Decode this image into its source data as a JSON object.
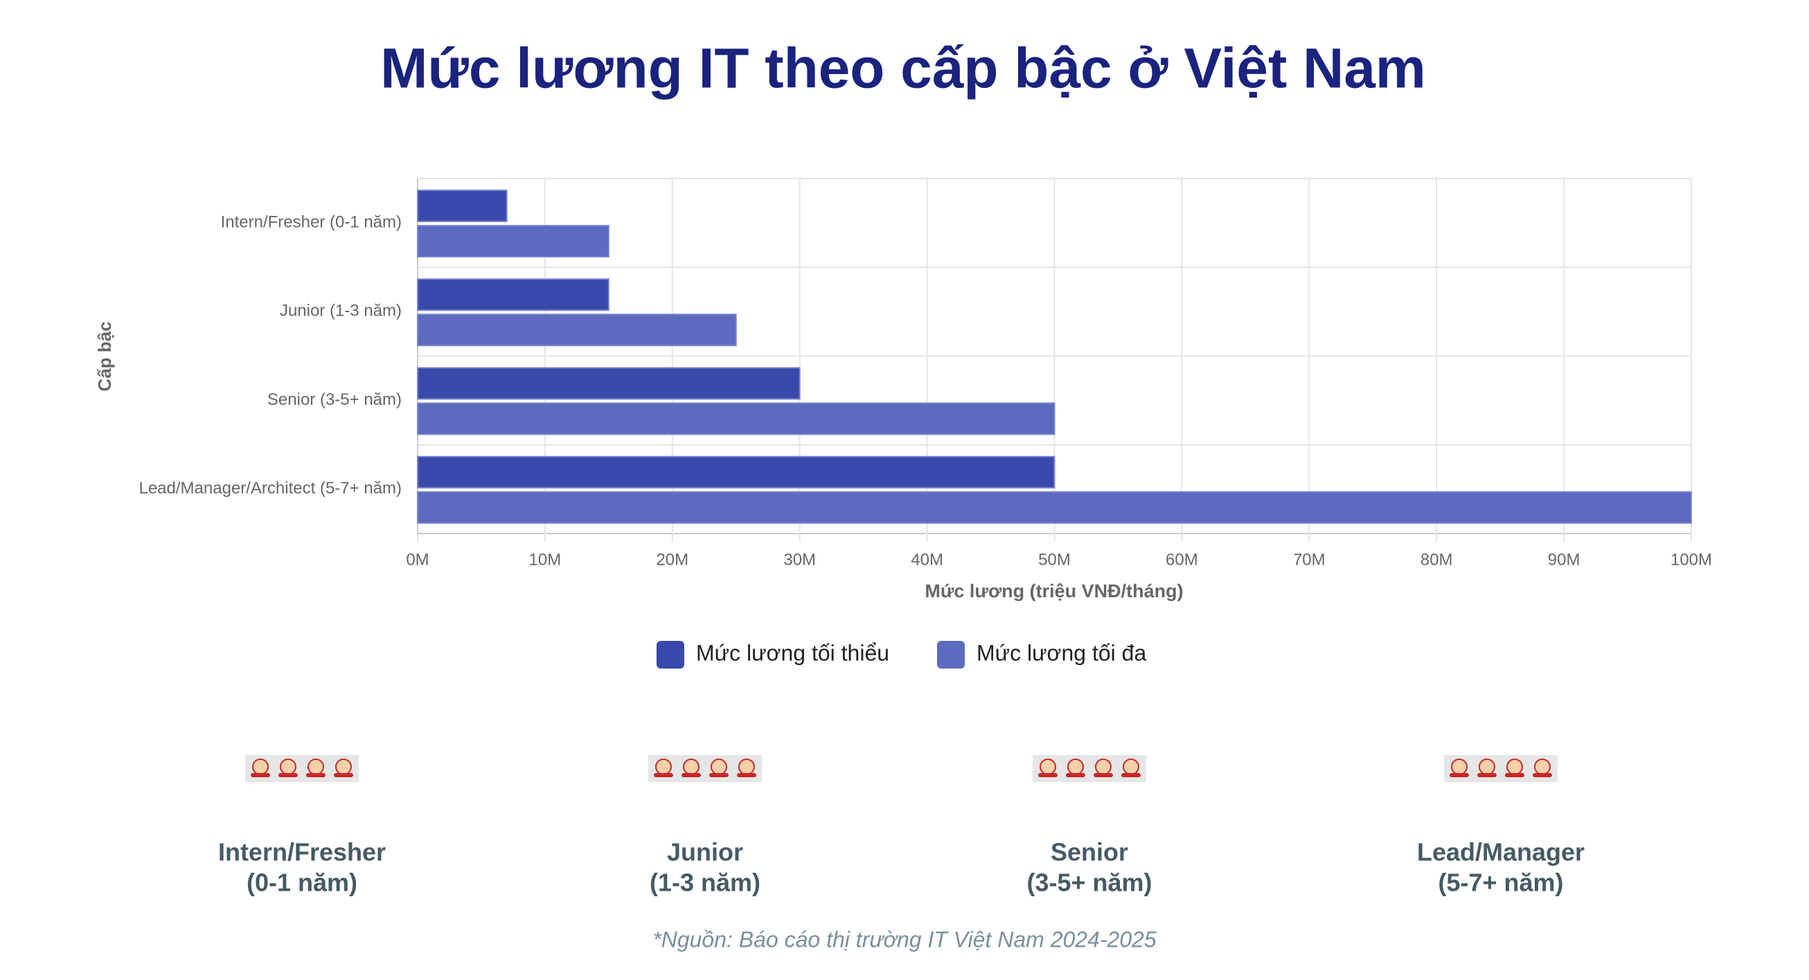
{
  "chart_data": {
    "type": "hbar",
    "title": "Mức lương IT theo cấp bậc ở Việt Nam",
    "categories": [
      "Intern/Fresher (0-1 năm)",
      "Junior (1-3 năm)",
      "Senior (3-5+ năm)",
      "Lead/Manager/Architect (5-7+ năm)"
    ],
    "series": [
      {
        "name": "Mức lương tối thiểu",
        "color": "#3949ab",
        "values": [
          7,
          15,
          30,
          50
        ]
      },
      {
        "name": "Mức lương tối đa",
        "color": "#5c6bc0",
        "values": [
          15,
          25,
          50,
          100
        ]
      }
    ],
    "xlim": [
      0,
      100
    ],
    "xticks": [
      {
        "value": 0,
        "label": "0M"
      },
      {
        "value": 10,
        "label": "10M"
      },
      {
        "value": 20,
        "label": "20M"
      },
      {
        "value": 30,
        "label": "30M"
      },
      {
        "value": 40,
        "label": "40M"
      },
      {
        "value": 50,
        "label": "50M"
      },
      {
        "value": 60,
        "label": "60M"
      },
      {
        "value": 70,
        "label": "70M"
      },
      {
        "value": 80,
        "label": "80M"
      },
      {
        "value": 90,
        "label": "90M"
      },
      {
        "value": 100,
        "label": "100M"
      }
    ],
    "x_label": "Mức lương (triệu VNĐ/tháng)",
    "y_label": "Cấp bậc",
    "grid": true,
    "legend": "bottom"
  },
  "cards": [
    {
      "title": "Intern/Fresher",
      "subtitle": "(0-1 năm)"
    },
    {
      "title": "Junior",
      "subtitle": "(1-3 năm)"
    },
    {
      "title": "Senior",
      "subtitle": "(3-5+ năm)"
    },
    {
      "title": "Lead/Manager",
      "subtitle": "(5-7+ năm)"
    }
  ],
  "footnote": "*Nguồn: Báo cáo thị trường IT Việt Nam 2024-2025"
}
